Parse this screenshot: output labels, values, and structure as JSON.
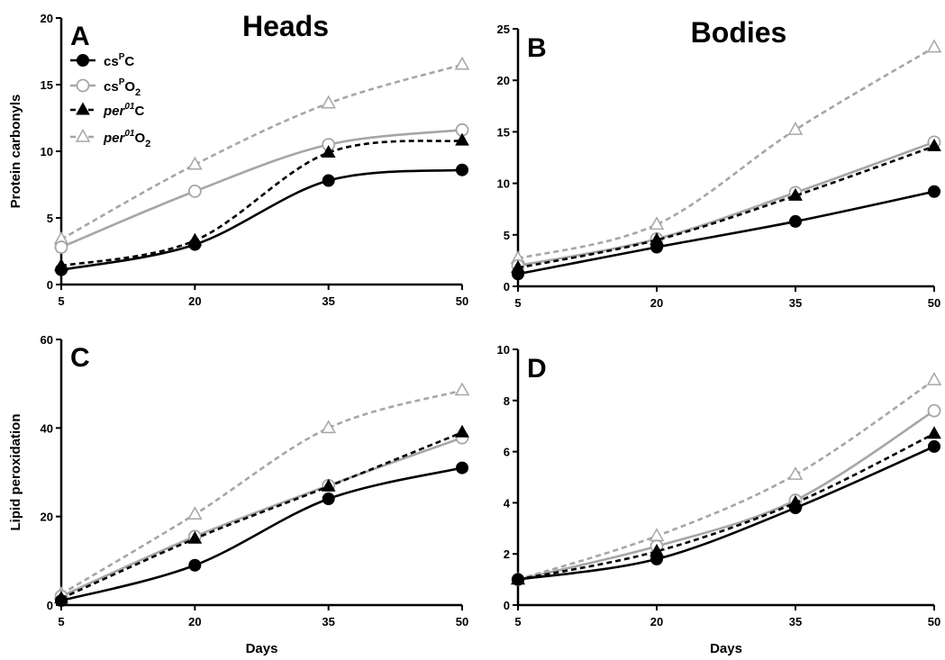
{
  "figure": {
    "column_titles": [
      "Heads",
      "Bodies"
    ]
  },
  "legend": [
    {
      "base": "cs",
      "sup": "P",
      "suffix": "C",
      "sub": "",
      "italic": false,
      "color": "#000000",
      "marker": "circle-filled",
      "dash": "solid"
    },
    {
      "base": "cs",
      "sup": "P",
      "suffix": "O",
      "sub": "2",
      "italic": false,
      "color": "#a6a6a6",
      "marker": "circle-open",
      "dash": "solid"
    },
    {
      "base": "per",
      "sup": "01",
      "suffix": "C",
      "sub": "",
      "italic": true,
      "color": "#000000",
      "marker": "triangle-filled",
      "dash": "dashed"
    },
    {
      "base": "per",
      "sup": "01",
      "suffix": "O",
      "sub": "2",
      "italic": true,
      "color": "#a6a6a6",
      "marker": "triangle-open",
      "dash": "dashed"
    }
  ],
  "chart_data": [
    {
      "type": "line",
      "panel": "A",
      "title": "Heads",
      "xlabel": "",
      "ylabel": "Protein carbonyls",
      "x": [
        5,
        20,
        35,
        50
      ],
      "xticks": [
        "5",
        "20",
        "35",
        "50"
      ],
      "ylim": [
        0,
        20
      ],
      "yticks": [
        "0",
        "5",
        "10",
        "15",
        "20"
      ],
      "series": [
        {
          "values": [
            1.1,
            3.0,
            7.8,
            8.6
          ]
        },
        {
          "values": [
            2.8,
            7.0,
            10.5,
            11.6
          ]
        },
        {
          "values": [
            1.4,
            3.3,
            9.9,
            10.8
          ]
        },
        {
          "values": [
            3.4,
            9.0,
            13.6,
            16.5
          ]
        }
      ]
    },
    {
      "type": "line",
      "panel": "B",
      "title": "Bodies",
      "xlabel": "",
      "ylabel": "",
      "x": [
        5,
        20,
        35,
        50
      ],
      "xticks": [
        "5",
        "20",
        "35",
        "50"
      ],
      "ylim": [
        0,
        25
      ],
      "yticks": [
        "0",
        "5",
        "10",
        "15",
        "20",
        "25"
      ],
      "series": [
        {
          "values": [
            1.2,
            3.8,
            6.3,
            9.2
          ]
        },
        {
          "values": [
            2.0,
            4.6,
            9.1,
            14.0
          ]
        },
        {
          "values": [
            1.8,
            4.5,
            8.8,
            13.6
          ]
        },
        {
          "values": [
            2.7,
            6.0,
            15.2,
            23.2
          ]
        }
      ]
    },
    {
      "type": "line",
      "panel": "C",
      "title": "",
      "xlabel": "Days",
      "ylabel": "Lipid peroxidation",
      "x": [
        5,
        20,
        35,
        50
      ],
      "xticks": [
        "5",
        "20",
        "35",
        "50"
      ],
      "ylim": [
        0,
        60
      ],
      "yticks": [
        "0",
        "20",
        "40",
        "60"
      ],
      "series": [
        {
          "values": [
            1.0,
            9.0,
            24.0,
            31.0
          ]
        },
        {
          "values": [
            2.0,
            15.5,
            27.0,
            37.8
          ]
        },
        {
          "values": [
            1.5,
            15.0,
            26.8,
            39.0
          ]
        },
        {
          "values": [
            2.5,
            20.5,
            40.0,
            48.5
          ]
        }
      ]
    },
    {
      "type": "line",
      "panel": "D",
      "title": "",
      "xlabel": "Days",
      "ylabel": "",
      "x": [
        5,
        20,
        35,
        50
      ],
      "xticks": [
        "5",
        "20",
        "35",
        "50"
      ],
      "ylim": [
        0,
        10
      ],
      "yticks": [
        "0",
        "2",
        "4",
        "6",
        "8",
        "10"
      ],
      "series": [
        {
          "values": [
            1.0,
            1.8,
            3.8,
            6.2
          ]
        },
        {
          "values": [
            1.0,
            2.3,
            4.1,
            7.6
          ]
        },
        {
          "values": [
            1.0,
            2.1,
            4.0,
            6.7
          ]
        },
        {
          "values": [
            1.0,
            2.7,
            5.1,
            8.8
          ]
        }
      ]
    }
  ]
}
